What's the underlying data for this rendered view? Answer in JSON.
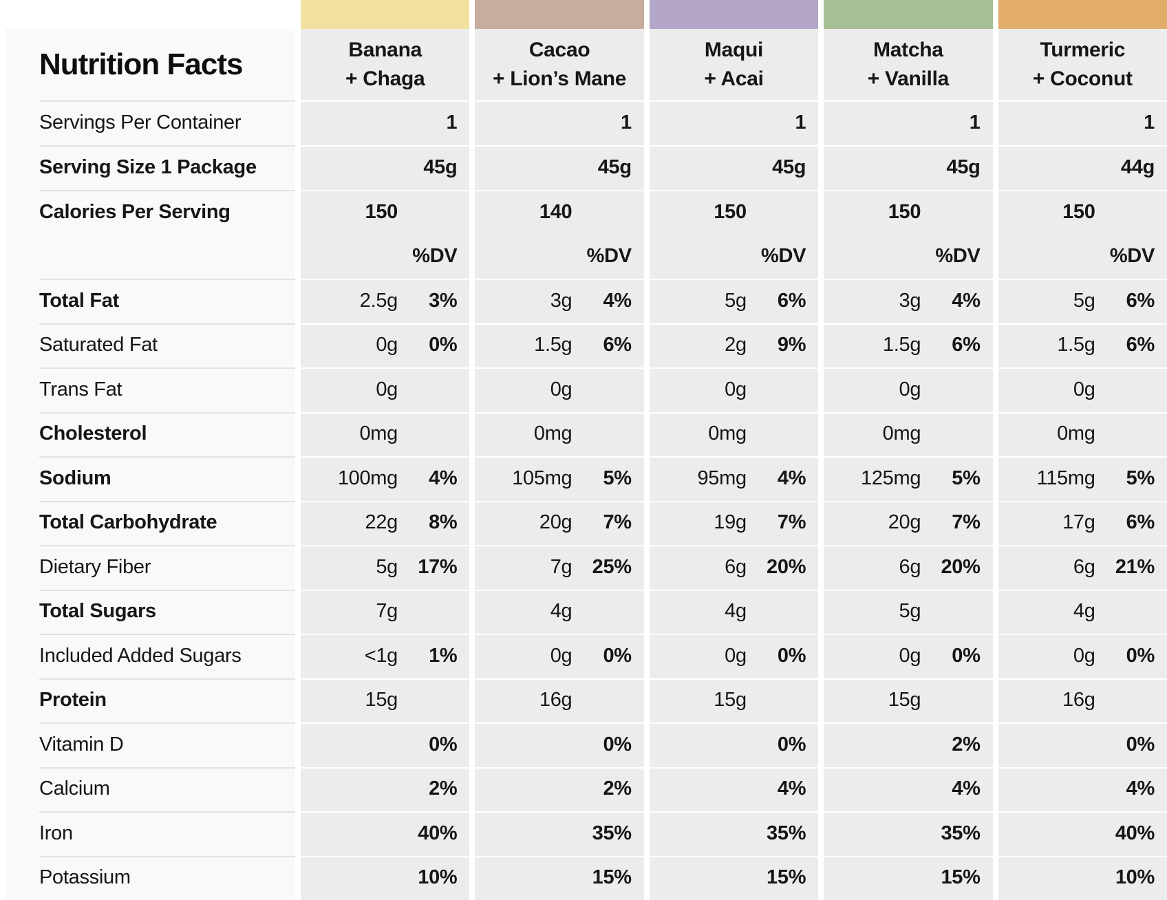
{
  "title": "Nutrition Facts",
  "products": [
    {
      "line1": "Banana",
      "line2": "+ Chaga",
      "color": "#F2E09E"
    },
    {
      "line1": "Cacao",
      "line2": "+ Lion’s Mane",
      "color": "#C6AD9D"
    },
    {
      "line1": "Maqui",
      "line2": "+ Acai",
      "color": "#B3A6C9"
    },
    {
      "line1": "Matcha",
      "line2": "+ Vanilla",
      "color": "#A6BF94"
    },
    {
      "line1": "Turmeric",
      "line2": "+ Coconut",
      "color": "#E2AC6B"
    }
  ],
  "rows": [
    {
      "type": "right",
      "label": "Servings Per Container",
      "bold": false,
      "values": [
        "1",
        "1",
        "1",
        "1",
        "1"
      ]
    },
    {
      "type": "right",
      "label": "Serving Size 1 Package",
      "bold": true,
      "values": [
        "45g",
        "45g",
        "45g",
        "45g",
        "44g"
      ]
    },
    {
      "type": "calories",
      "label": "Calories Per Serving",
      "bold": true,
      "values": [
        "150",
        "140",
        "150",
        "150",
        "150"
      ],
      "dv_label": "%DV"
    },
    {
      "type": "nutrient",
      "label": "Total Fat",
      "bold": true,
      "amounts": [
        "2.5g",
        "3g",
        "5g",
        "3g",
        "5g"
      ],
      "dvs": [
        "3%",
        "4%",
        "6%",
        "4%",
        "6%"
      ]
    },
    {
      "type": "nutrient",
      "label": "Saturated Fat",
      "bold": false,
      "amounts": [
        "0g",
        "1.5g",
        "2g",
        "1.5g",
        "1.5g"
      ],
      "dvs": [
        "0%",
        "6%",
        "9%",
        "6%",
        "6%"
      ]
    },
    {
      "type": "nutrient",
      "label": "Trans Fat",
      "bold": false,
      "amounts": [
        "0g",
        "0g",
        "0g",
        "0g",
        "0g"
      ],
      "dvs": [
        "",
        "",
        "",
        "",
        ""
      ]
    },
    {
      "type": "nutrient",
      "label": "Cholesterol",
      "bold": true,
      "amounts": [
        "0mg",
        "0mg",
        "0mg",
        "0mg",
        "0mg"
      ],
      "dvs": [
        "",
        "",
        "",
        "",
        ""
      ]
    },
    {
      "type": "nutrient",
      "label": "Sodium",
      "bold": true,
      "amounts": [
        "100mg",
        "105mg",
        "95mg",
        "125mg",
        "115mg"
      ],
      "dvs": [
        "4%",
        "5%",
        "4%",
        "5%",
        "5%"
      ]
    },
    {
      "type": "nutrient",
      "label": "Total Carbohydrate",
      "bold": true,
      "amounts": [
        "22g",
        "20g",
        "19g",
        "20g",
        "17g"
      ],
      "dvs": [
        "8%",
        "7%",
        "7%",
        "7%",
        "6%"
      ]
    },
    {
      "type": "nutrient",
      "label": "Dietary Fiber",
      "bold": false,
      "amounts": [
        "5g",
        "7g",
        "6g",
        "6g",
        "6g"
      ],
      "dvs": [
        "17%",
        "25%",
        "20%",
        "20%",
        "21%"
      ]
    },
    {
      "type": "nutrient",
      "label": "Total Sugars",
      "bold": true,
      "amounts": [
        "7g",
        "4g",
        "4g",
        "5g",
        "4g"
      ],
      "dvs": [
        "",
        "",
        "",
        "",
        ""
      ]
    },
    {
      "type": "nutrient",
      "label": "Included Added Sugars",
      "bold": false,
      "amounts": [
        "<1g",
        "0g",
        "0g",
        "0g",
        "0g"
      ],
      "dvs": [
        "1%",
        "0%",
        "0%",
        "0%",
        "0%"
      ]
    },
    {
      "type": "nutrient",
      "label": "Protein",
      "bold": true,
      "amounts": [
        "15g",
        "16g",
        "15g",
        "15g",
        "16g"
      ],
      "dvs": [
        "",
        "",
        "",
        "",
        ""
      ]
    },
    {
      "type": "nutrient",
      "label": "Vitamin D",
      "bold": false,
      "amounts": [
        "",
        "",
        "",
        "",
        ""
      ],
      "dvs": [
        "0%",
        "0%",
        "0%",
        "2%",
        "0%"
      ]
    },
    {
      "type": "nutrient",
      "label": "Calcium",
      "bold": false,
      "amounts": [
        "",
        "",
        "",
        "",
        ""
      ],
      "dvs": [
        "2%",
        "2%",
        "4%",
        "4%",
        "4%"
      ]
    },
    {
      "type": "nutrient",
      "label": "Iron",
      "bold": false,
      "amounts": [
        "",
        "",
        "",
        "",
        ""
      ],
      "dvs": [
        "40%",
        "35%",
        "35%",
        "35%",
        "40%"
      ]
    },
    {
      "type": "nutrient",
      "label": "Potassium",
      "bold": false,
      "amounts": [
        "",
        "",
        "",
        "",
        ""
      ],
      "dvs": [
        "10%",
        "15%",
        "15%",
        "15%",
        "10%"
      ]
    }
  ]
}
